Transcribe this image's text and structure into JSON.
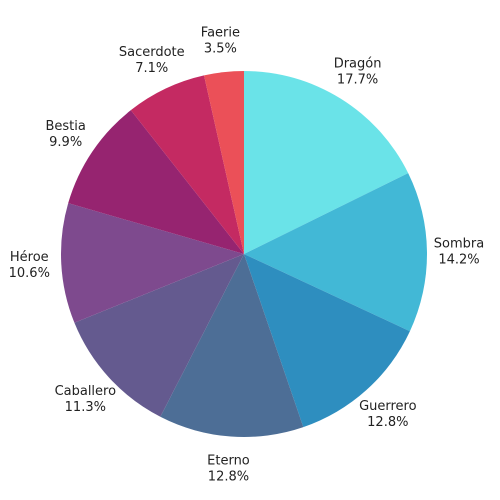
{
  "chart_data": {
    "type": "pie",
    "categories": [
      "Dragón",
      "Sombra",
      "Guerrero",
      "Eterno",
      "Caballero",
      "Héroe",
      "Bestia",
      "Sacerdote",
      "Faerie"
    ],
    "values": [
      17.7,
      14.2,
      12.8,
      12.8,
      11.3,
      10.6,
      9.9,
      7.1,
      3.5
    ],
    "value_labels": [
      "17.7%",
      "14.2%",
      "12.8%",
      "12.8%",
      "11.3%",
      "10.6%",
      "9.9%",
      "7.1%",
      "3.5%"
    ],
    "colors": [
      "#6ae3e8",
      "#42b8d6",
      "#2e8ebf",
      "#4d6e96",
      "#645a8f",
      "#7e4a8e",
      "#962470",
      "#c42a62",
      "#eb5058"
    ]
  }
}
